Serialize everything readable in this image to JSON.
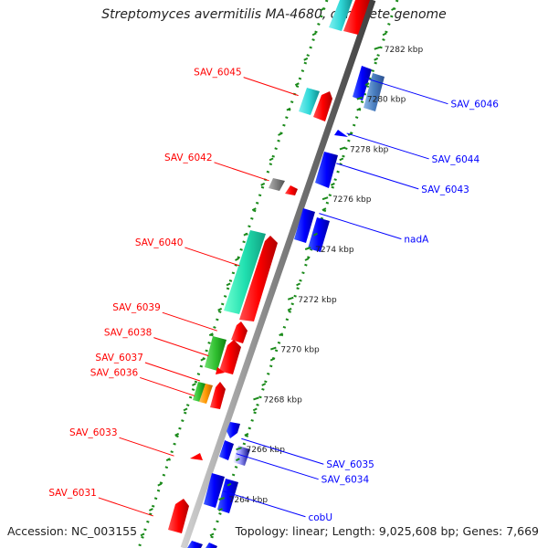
{
  "title": "Streptomyces avermitilis MA-4680, complete genome",
  "footer": {
    "accession": "Accession: NC_003155",
    "summary": "Topology: linear; Length: 9,025,608 bp; Genes: 7,669"
  },
  "colors": {
    "forward": "#ff0000",
    "reverse": "#0000ff",
    "cyan": "#30d8d8",
    "teal": "#20e0b0",
    "green": "#30c030",
    "orange": "#ff9900",
    "gray": "#808080",
    "steel": "#4a7fc0",
    "tick": "#1a8a1a"
  },
  "axis": {
    "ticks": [
      {
        "label": "7264 kbp",
        "kbp": 7264
      },
      {
        "label": "7266 kbp",
        "kbp": 7266
      },
      {
        "label": "7268 kbp",
        "kbp": 7268
      },
      {
        "label": "7270 kbp",
        "kbp": 7270
      },
      {
        "label": "7272 kbp",
        "kbp": 7272
      },
      {
        "label": "7274 kbp",
        "kbp": 7274
      },
      {
        "label": "7276 kbp",
        "kbp": 7276
      },
      {
        "label": "7278 kbp",
        "kbp": 7278
      },
      {
        "label": "7280 kbp",
        "kbp": 7280
      },
      {
        "label": "7282 kbp",
        "kbp": 7282
      }
    ]
  },
  "genes_forward": [
    {
      "label": "SAV_6045",
      "kbp": 7280.4
    },
    {
      "label": "SAV_6042",
      "kbp": 7277.0
    },
    {
      "label": "SAV_6040",
      "kbp": 7273.6
    },
    {
      "label": "SAV_6039",
      "kbp": 7271.0
    },
    {
      "label": "SAV_6038",
      "kbp": 7270.0
    },
    {
      "label": "SAV_6037",
      "kbp": 7269.0
    },
    {
      "label": "SAV_6036",
      "kbp": 7268.4
    },
    {
      "label": "SAV_6033",
      "kbp": 7266.0
    },
    {
      "label": "SAV_6031",
      "kbp": 7263.6
    }
  ],
  "genes_reverse": [
    {
      "label": "SAV_6046",
      "kbp": 7280.8
    },
    {
      "label": "SAV_6044",
      "kbp": 7278.6
    },
    {
      "label": "SAV_6043",
      "kbp": 7277.4
    },
    {
      "label": "nadA",
      "kbp": 7275.4
    },
    {
      "label": "SAV_6035",
      "kbp": 7266.4
    },
    {
      "label": "SAV_6034",
      "kbp": 7265.8
    },
    {
      "label": "cobU",
      "kbp": 7264.3
    }
  ]
}
